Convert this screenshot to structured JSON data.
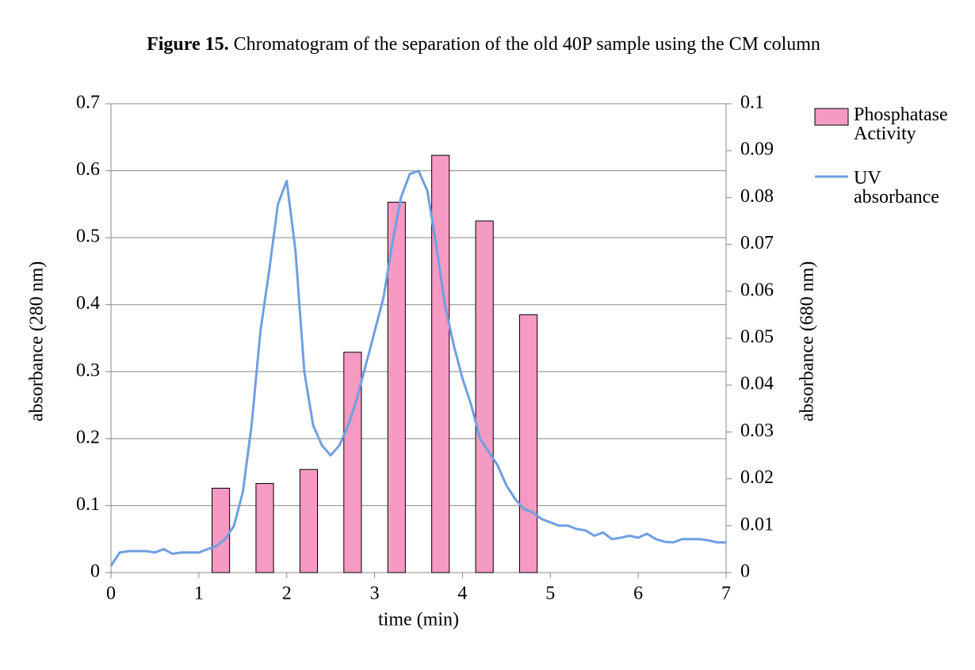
{
  "chart_data": {
    "type": "bar-line",
    "title_prefix": "Figure 15.",
    "title": "Chromatogram of the separation of the old 40P sample using the CM column",
    "x_label": "time (min)",
    "y_label": "absorbance (280 nm)",
    "y2_label": "absorbance (680 nm)",
    "y_label_color": "#6b9ddb",
    "y2_label_color": "#f2a9c9",
    "xlim": [
      0,
      7
    ],
    "xticks": [
      0,
      1,
      2,
      3,
      4,
      5,
      6,
      7
    ],
    "ylim": [
      0,
      0.7
    ],
    "yticks": [
      0,
      0.1,
      0.2,
      0.3,
      0.4,
      0.5,
      0.6,
      0.7
    ],
    "y2lim": [
      0,
      0.1
    ],
    "y2ticks": [
      0,
      0.01,
      0.02,
      0.03,
      0.04,
      0.05,
      0.06,
      0.07,
      0.08,
      0.09,
      0.1
    ],
    "grid": true,
    "legend": "right",
    "series": [
      {
        "name": "Phosphatase Activity",
        "type": "bar",
        "axis": "y2",
        "color": "#f49ac3",
        "x": [
          1.25,
          1.75,
          2.25,
          2.75,
          3.25,
          3.75,
          4.25,
          4.75
        ],
        "values": [
          0.018,
          0.019,
          0.022,
          0.047,
          0.079,
          0.089,
          0.075,
          0.055
        ]
      },
      {
        "name": "UV absorbance",
        "type": "line",
        "color": "#6f9fe0",
        "x": [
          0,
          0.1,
          0.2,
          0.4,
          0.5,
          0.6,
          0.7,
          0.8,
          1.0,
          1.2,
          1.3,
          1.4,
          1.5,
          1.6,
          1.7,
          1.8,
          1.9,
          2.0,
          2.1,
          2.2,
          2.3,
          2.4,
          2.5,
          2.6,
          2.7,
          2.8,
          2.9,
          3.0,
          3.1,
          3.2,
          3.3,
          3.4,
          3.5,
          3.6,
          3.7,
          3.8,
          3.9,
          4.0,
          4.1,
          4.2,
          4.3,
          4.4,
          4.5,
          4.6,
          4.7,
          4.8,
          4.9,
          5.0,
          5.1,
          5.2,
          5.3,
          5.4,
          5.5,
          5.6,
          5.7,
          5.8,
          5.9,
          6.0,
          6.1,
          6.2,
          6.3,
          6.4,
          6.5,
          6.7,
          6.8,
          6.9,
          7.0
        ],
        "values": [
          0.01,
          0.03,
          0.032,
          0.032,
          0.03,
          0.035,
          0.028,
          0.03,
          0.03,
          0.04,
          0.05,
          0.07,
          0.12,
          0.22,
          0.36,
          0.45,
          0.55,
          0.585,
          0.48,
          0.3,
          0.22,
          0.19,
          0.175,
          0.19,
          0.22,
          0.26,
          0.31,
          0.36,
          0.41,
          0.49,
          0.56,
          0.595,
          0.6,
          0.57,
          0.49,
          0.4,
          0.34,
          0.29,
          0.25,
          0.2,
          0.18,
          0.16,
          0.13,
          0.11,
          0.095,
          0.09,
          0.08,
          0.075,
          0.07,
          0.07,
          0.065,
          0.063,
          0.055,
          0.06,
          0.05,
          0.052,
          0.055,
          0.052,
          0.058,
          0.05,
          0.046,
          0.045,
          0.05,
          0.05,
          0.048,
          0.045,
          0.045
        ]
      }
    ]
  }
}
